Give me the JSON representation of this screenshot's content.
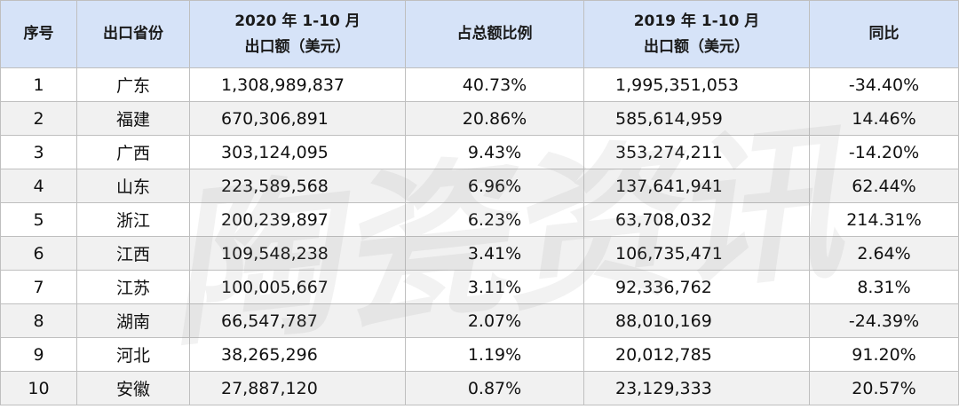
{
  "header": {
    "col_index": "序号",
    "col_province": "出口省份",
    "col_2020_line1": "2020 年 1-10 月",
    "col_2020_line2": "出口额（美元）",
    "col_share": "占总额比例",
    "col_2019_line1": "2019 年 1-10 月",
    "col_2019_line2": "出口额（美元）",
    "col_yoy": "同比"
  },
  "rows": [
    {
      "index": "1",
      "province": "广东",
      "export_2020": "1,308,989,837",
      "share": "40.73%",
      "export_2019": "1,995,351,053",
      "yoy": "-34.40%"
    },
    {
      "index": "2",
      "province": "福建",
      "export_2020": "670,306,891",
      "share": "20.86%",
      "export_2019": "585,614,959",
      "yoy": "14.46%"
    },
    {
      "index": "3",
      "province": "广西",
      "export_2020": "303,124,095",
      "share": "9.43%",
      "export_2019": "353,274,211",
      "yoy": "-14.20%"
    },
    {
      "index": "4",
      "province": "山东",
      "export_2020": "223,589,568",
      "share": "6.96%",
      "export_2019": "137,641,941",
      "yoy": "62.44%"
    },
    {
      "index": "5",
      "province": "浙江",
      "export_2020": "200,239,897",
      "share": "6.23%",
      "export_2019": "63,708,032",
      "yoy": "214.31%"
    },
    {
      "index": "6",
      "province": "江西",
      "export_2020": "109,548,238",
      "share": "3.41%",
      "export_2019": "106,735,471",
      "yoy": "2.64%"
    },
    {
      "index": "7",
      "province": "江苏",
      "export_2020": "100,005,667",
      "share": "3.11%",
      "export_2019": "92,336,762",
      "yoy": "8.31%"
    },
    {
      "index": "8",
      "province": "湖南",
      "export_2020": "66,547,787",
      "share": "2.07%",
      "export_2019": "88,010,169",
      "yoy": "-24.39%"
    },
    {
      "index": "9",
      "province": "河北",
      "export_2020": "38,265,296",
      "share": "1.19%",
      "export_2019": "20,012,785",
      "yoy": "91.20%"
    },
    {
      "index": "10",
      "province": "安徽",
      "export_2020": "27,887,120",
      "share": "0.87%",
      "export_2019": "23,129,333",
      "yoy": "20.57%"
    }
  ],
  "watermark": {
    "text": [
      "陶",
      "瓷",
      "资",
      "讯"
    ]
  },
  "colors": {
    "header_bg": "#d6e3f8",
    "stripe_bg": "#f1f1f1",
    "border": "#bfbfbf"
  }
}
